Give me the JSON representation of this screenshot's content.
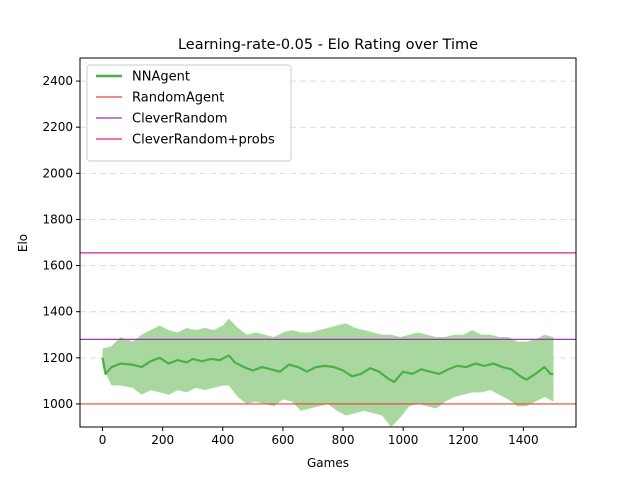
{
  "chart_data": {
    "type": "line",
    "title": "Learning-rate-0.05 - Elo Rating over Time",
    "xlabel": "Games",
    "ylabel": "Elo",
    "xlim": [
      -75,
      1575
    ],
    "ylim": [
      900,
      2500
    ],
    "xticks": [
      0,
      200,
      400,
      600,
      800,
      1000,
      1200,
      1400
    ],
    "yticks": [
      1000,
      1200,
      1400,
      1600,
      1800,
      2000,
      2200,
      2400
    ],
    "grid": "y-dashed",
    "legend_position": "top-left",
    "series": [
      {
        "name": "NNAgent",
        "color": "#4daf4a",
        "band_color": "#a8d8a0",
        "points": [
          [
            0,
            1200
          ],
          [
            10,
            1130
          ],
          [
            30,
            1160
          ],
          [
            60,
            1175
          ],
          [
            100,
            1170
          ],
          [
            130,
            1160
          ],
          [
            160,
            1185
          ],
          [
            190,
            1200
          ],
          [
            220,
            1175
          ],
          [
            250,
            1190
          ],
          [
            280,
            1180
          ],
          [
            300,
            1195
          ],
          [
            330,
            1185
          ],
          [
            360,
            1195
          ],
          [
            390,
            1190
          ],
          [
            420,
            1210
          ],
          [
            440,
            1180
          ],
          [
            470,
            1160
          ],
          [
            500,
            1145
          ],
          [
            530,
            1160
          ],
          [
            560,
            1150
          ],
          [
            590,
            1140
          ],
          [
            620,
            1170
          ],
          [
            650,
            1160
          ],
          [
            680,
            1140
          ],
          [
            710,
            1160
          ],
          [
            740,
            1165
          ],
          [
            770,
            1160
          ],
          [
            800,
            1145
          ],
          [
            830,
            1120
          ],
          [
            860,
            1130
          ],
          [
            890,
            1155
          ],
          [
            920,
            1140
          ],
          [
            950,
            1110
          ],
          [
            970,
            1095
          ],
          [
            1000,
            1140
          ],
          [
            1030,
            1130
          ],
          [
            1060,
            1150
          ],
          [
            1090,
            1140
          ],
          [
            1120,
            1130
          ],
          [
            1150,
            1150
          ],
          [
            1180,
            1165
          ],
          [
            1210,
            1160
          ],
          [
            1240,
            1175
          ],
          [
            1270,
            1165
          ],
          [
            1300,
            1175
          ],
          [
            1330,
            1160
          ],
          [
            1360,
            1150
          ],
          [
            1390,
            1120
          ],
          [
            1410,
            1105
          ],
          [
            1440,
            1130
          ],
          [
            1470,
            1160
          ],
          [
            1490,
            1130
          ],
          [
            1500,
            1130
          ]
        ],
        "band": [
          [
            0,
            1160,
            1240
          ],
          [
            30,
            1080,
            1250
          ],
          [
            60,
            1080,
            1290
          ],
          [
            100,
            1070,
            1270
          ],
          [
            130,
            1040,
            1300
          ],
          [
            160,
            1060,
            1320
          ],
          [
            190,
            1050,
            1340
          ],
          [
            220,
            1040,
            1320
          ],
          [
            250,
            1060,
            1310
          ],
          [
            280,
            1050,
            1330
          ],
          [
            310,
            1070,
            1320
          ],
          [
            340,
            1060,
            1330
          ],
          [
            370,
            1070,
            1320
          ],
          [
            400,
            1080,
            1340
          ],
          [
            420,
            1080,
            1370
          ],
          [
            450,
            1030,
            1330
          ],
          [
            480,
            1000,
            1300
          ],
          [
            510,
            1010,
            1310
          ],
          [
            540,
            1000,
            1300
          ],
          [
            570,
            990,
            1290
          ],
          [
            600,
            1020,
            1310
          ],
          [
            630,
            1010,
            1320
          ],
          [
            660,
            970,
            1310
          ],
          [
            690,
            980,
            1310
          ],
          [
            720,
            990,
            1320
          ],
          [
            750,
            1000,
            1330
          ],
          [
            780,
            970,
            1340
          ],
          [
            810,
            950,
            1350
          ],
          [
            840,
            960,
            1330
          ],
          [
            870,
            970,
            1320
          ],
          [
            900,
            960,
            1310
          ],
          [
            930,
            950,
            1300
          ],
          [
            960,
            900,
            1300
          ],
          [
            990,
            940,
            1290
          ],
          [
            1020,
            990,
            1300
          ],
          [
            1050,
            1000,
            1310
          ],
          [
            1080,
            990,
            1300
          ],
          [
            1110,
            980,
            1290
          ],
          [
            1140,
            1010,
            1290
          ],
          [
            1170,
            1030,
            1300
          ],
          [
            1200,
            1040,
            1300
          ],
          [
            1230,
            1050,
            1320
          ],
          [
            1260,
            1050,
            1300
          ],
          [
            1290,
            1060,
            1300
          ],
          [
            1320,
            1040,
            1290
          ],
          [
            1350,
            1020,
            1290
          ],
          [
            1380,
            990,
            1270
          ],
          [
            1410,
            990,
            1270
          ],
          [
            1440,
            1010,
            1280
          ],
          [
            1470,
            1030,
            1300
          ],
          [
            1500,
            1010,
            1290
          ]
        ]
      },
      {
        "name": "RandomAgent",
        "type": "hline",
        "y": 1000,
        "color": "#e8453c"
      },
      {
        "name": "CleverRandom",
        "type": "hline",
        "y": 1280,
        "color": "#a033b8"
      },
      {
        "name": "CleverRandom+probs",
        "type": "hline",
        "y": 1655,
        "color": "#e0208a"
      }
    ]
  }
}
